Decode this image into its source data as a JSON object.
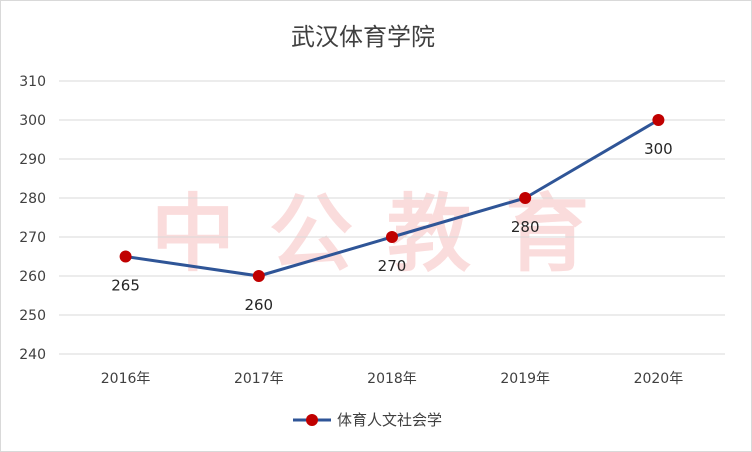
{
  "colors": {
    "line": "#2f5597",
    "marker": "#c00000",
    "grid": "#d9d9d9",
    "watermark": "#f6b3b3"
  },
  "watermark": {
    "text": "中公教育"
  },
  "chart_data": {
    "type": "line",
    "title": "武汉体育学院",
    "categories": [
      "2016年",
      "2017年",
      "2018年",
      "2019年",
      "2020年"
    ],
    "series": [
      {
        "name": "体育人文社会学",
        "values": [
          265,
          260,
          270,
          280,
          300
        ],
        "labels": [
          "265",
          "260",
          "270",
          "280",
          "300"
        ]
      }
    ],
    "ylim": [
      240,
      310
    ],
    "yticks": [
      "240",
      "250",
      "260",
      "270",
      "280",
      "290",
      "300",
      "310"
    ],
    "grid": true,
    "legend": "bottom"
  }
}
